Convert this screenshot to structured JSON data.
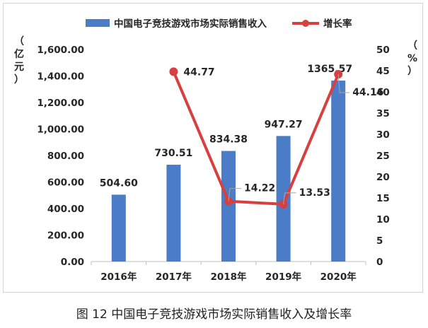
{
  "chart_data": {
    "type": "bar+line",
    "categories": [
      "2016年",
      "2017年",
      "2018年",
      "2019年",
      "2020年"
    ],
    "bar_series": {
      "name": "中国电子竞技游戏市场实际销售收入",
      "values": [
        504.6,
        730.51,
        834.38,
        947.27,
        1365.57
      ],
      "labels": [
        "504.60",
        "730.51",
        "834.38",
        "947.27",
        "1365.57"
      ],
      "color": "#4a7cc7"
    },
    "line_series": {
      "name": "增长率",
      "values": [
        null,
        44.77,
        14.22,
        13.53,
        44.16
      ],
      "labels": [
        "",
        "44.77",
        "14.22",
        "13.53",
        "44.16"
      ],
      "color": "#d83f3f"
    },
    "y_left": {
      "label": "（亿元）",
      "ylim": [
        0,
        1600
      ],
      "ticks": [
        "0.00",
        "200.00",
        "400.00",
        "600.00",
        "800.00",
        "1,000.00",
        "1,200.00",
        "1,400.00",
        "1,600.00"
      ]
    },
    "y_right": {
      "label": "（%）",
      "ylim": [
        0,
        50
      ],
      "ticks": [
        "0",
        "5",
        "10",
        "15",
        "20",
        "25",
        "30",
        "35",
        "40",
        "45",
        "50"
      ]
    },
    "grid": false,
    "legend": "top"
  },
  "caption": "图 12  中国电子竞技游戏市场实际销售收入及增长率"
}
